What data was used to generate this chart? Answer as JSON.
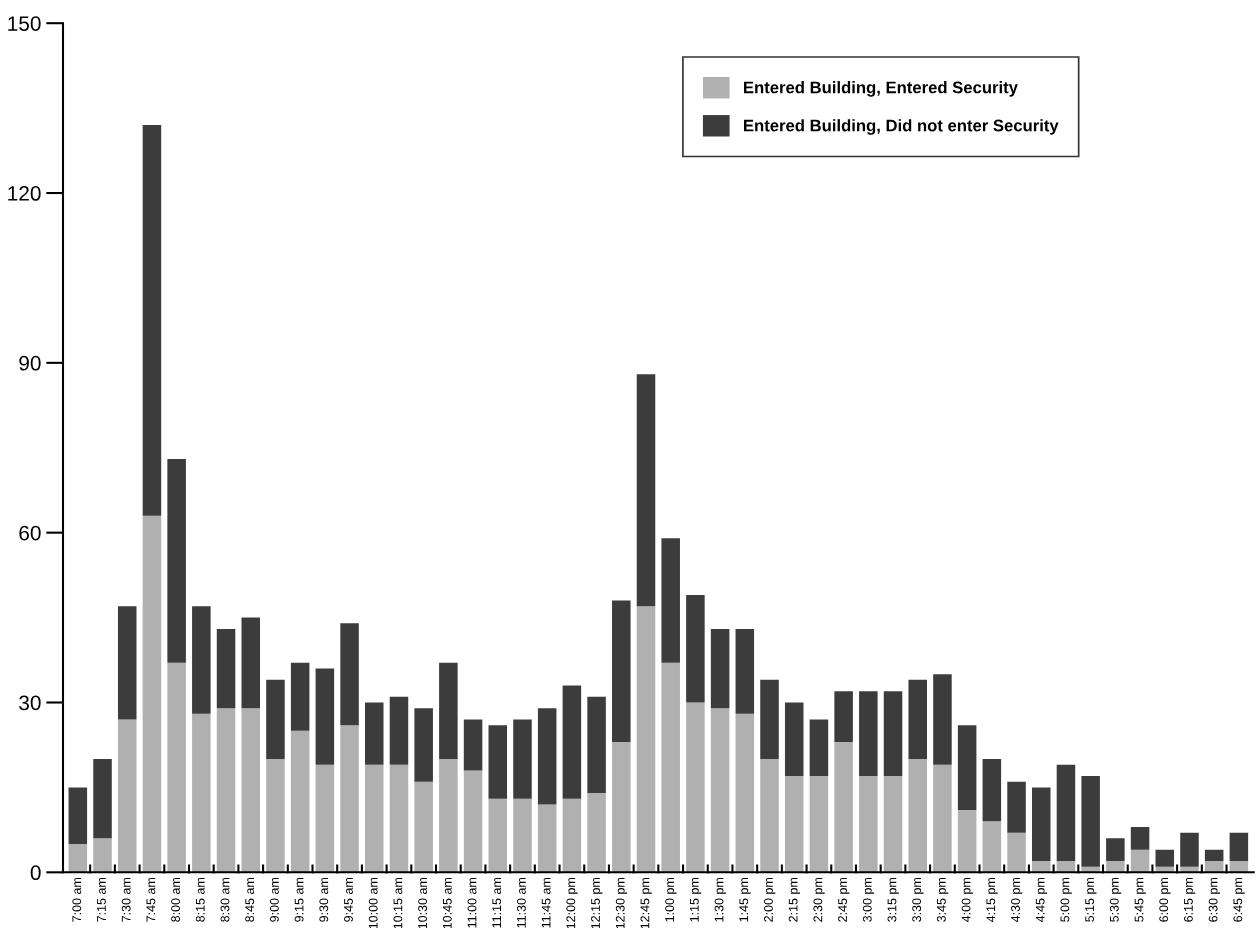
{
  "chart_data": {
    "type": "bar",
    "stacked": true,
    "categories": [
      "7:00 am",
      "7:15 am",
      "7:30 am",
      "7:45 am",
      "8:00 am",
      "8:15 am",
      "8:30 am",
      "8:45 am",
      "9:00 am",
      "9:15 am",
      "9:30 am",
      "9:45 am",
      "10:00 am",
      "10:15 am",
      "10:30 am",
      "10:45 am",
      "11:00 am",
      "11:15 am",
      "11:30 am",
      "11:45 am",
      "12:00 pm",
      "12:15 pm",
      "12:30 pm",
      "12:45 pm",
      "1:00 pm",
      "1:15 pm",
      "1:30 pm",
      "1:45 pm",
      "2:00 pm",
      "2:15 pm",
      "2:30 pm",
      "2:45 pm",
      "3:00 pm",
      "3:15 pm",
      "3:30 pm",
      "3:45 pm",
      "4:00 pm",
      "4:15 pm",
      "4:30 pm",
      "4:45 pm",
      "5:00 pm",
      "5:15 pm",
      "5:30 pm",
      "5:45 pm",
      "6:00 pm",
      "6:15 pm",
      "6:30 pm",
      "6:45 pm"
    ],
    "series": [
      {
        "name": "Entered Building, Entered Security",
        "color": "#b0b0b0",
        "values": [
          5,
          6,
          27,
          63,
          37,
          28,
          29,
          29,
          20,
          25,
          19,
          26,
          19,
          19,
          16,
          20,
          18,
          13,
          13,
          12,
          13,
          14,
          23,
          47,
          37,
          30,
          29,
          28,
          20,
          17,
          17,
          23,
          17,
          17,
          20,
          19,
          11,
          9,
          7,
          2,
          2,
          1,
          2,
          4,
          1,
          1,
          2,
          2
        ]
      },
      {
        "name": "Entered Building, Did not enter Security",
        "color": "#3c3c3c",
        "values": [
          10,
          14,
          20,
          69,
          36,
          19,
          14,
          16,
          14,
          12,
          17,
          18,
          11,
          12,
          13,
          17,
          9,
          13,
          14,
          17,
          20,
          17,
          25,
          41,
          22,
          19,
          14,
          15,
          14,
          13,
          10,
          9,
          15,
          15,
          14,
          16,
          15,
          11,
          9,
          13,
          17,
          16,
          4,
          4,
          3,
          6,
          2,
          5
        ]
      }
    ],
    "ylim": [
      0,
      150
    ],
    "yticks": [
      0,
      30,
      60,
      90,
      120,
      150
    ],
    "grid": false,
    "legend": "top right"
  }
}
